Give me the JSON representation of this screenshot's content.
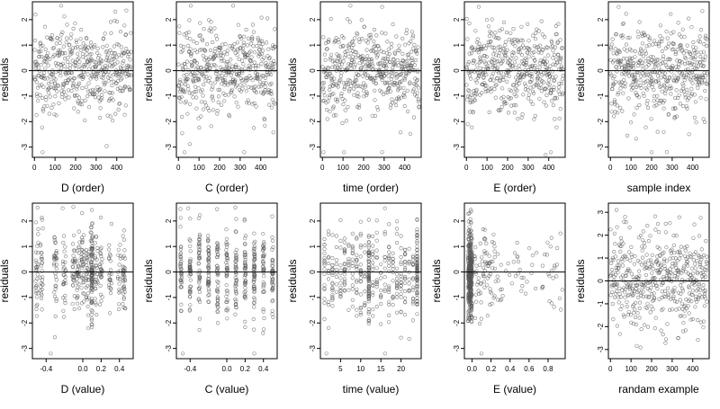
{
  "figure": {
    "background": "#ffffff",
    "point_color": "#555555",
    "line_color": "#000000"
  },
  "chart_data": [
    {
      "type": "scatter",
      "xlabel": "D (order)",
      "ylabel": "residuals",
      "xlim": [
        -10,
        480
      ],
      "ylim": [
        -3.4,
        2.7
      ],
      "xticks": [
        0,
        100,
        200,
        300,
        400
      ],
      "xticklabels": [
        "0",
        "100",
        "200",
        "300",
        "400"
      ],
      "yticks": [
        -3,
        -2,
        -1,
        0,
        1,
        2
      ],
      "yticklabels": [
        "-3",
        "-2",
        "-1",
        "0",
        "1",
        "2"
      ],
      "hline": 0,
      "n_points": 470,
      "x_range": [
        0,
        470
      ],
      "y_spread_sd": 0.85,
      "pattern": "uniform index",
      "outliers": [
        {
          "x": 40,
          "y": -3.2
        },
        {
          "x": 130,
          "y": 2.55
        },
        {
          "x": 5,
          "y": 2.2
        }
      ]
    },
    {
      "type": "scatter",
      "xlabel": "C (order)",
      "ylabel": "residuals",
      "xlim": [
        -10,
        480
      ],
      "ylim": [
        -3.4,
        2.7
      ],
      "xticks": [
        0,
        100,
        200,
        300,
        400
      ],
      "xticklabels": [
        "0",
        "100",
        "200",
        "300",
        "400"
      ],
      "yticks": [
        -3,
        -2,
        -1,
        0,
        1,
        2
      ],
      "yticklabels": [
        "-3",
        "-2",
        "-1",
        "0",
        "1",
        "2"
      ],
      "hline": 0,
      "n_points": 470,
      "x_range": [
        0,
        470
      ],
      "y_spread_sd": 0.85,
      "pattern": "uniform index",
      "outliers": [
        {
          "x": 30,
          "y": -3.2
        },
        {
          "x": 320,
          "y": -3.2
        },
        {
          "x": 60,
          "y": 2.55
        }
      ]
    },
    {
      "type": "scatter",
      "xlabel": "time (order)",
      "ylabel": "residuals",
      "xlim": [
        -10,
        480
      ],
      "ylim": [
        -3.4,
        2.7
      ],
      "xticks": [
        0,
        100,
        200,
        300,
        400
      ],
      "xticklabels": [
        "0",
        "100",
        "200",
        "300",
        "400"
      ],
      "yticks": [
        -3,
        -2,
        -1,
        0,
        1,
        2
      ],
      "yticklabels": [
        "-3",
        "-2",
        "-1",
        "0",
        "1",
        "2"
      ],
      "hline": 0,
      "n_points": 470,
      "x_range": [
        0,
        470
      ],
      "y_spread_sd": 0.85,
      "pattern": "uniform index",
      "outliers": [
        {
          "x": 5,
          "y": -3.2
        },
        {
          "x": 290,
          "y": -3.2
        },
        {
          "x": 290,
          "y": 2.5
        }
      ]
    },
    {
      "type": "scatter",
      "xlabel": "E (order)",
      "ylabel": "residuals",
      "xlim": [
        -10,
        480
      ],
      "ylim": [
        -3.4,
        2.7
      ],
      "xticks": [
        0,
        100,
        200,
        300,
        400
      ],
      "xticklabels": [
        "0",
        "100",
        "200",
        "300",
        "400"
      ],
      "yticks": [
        -3,
        -2,
        -1,
        0,
        1,
        2
      ],
      "yticklabels": [
        "-3",
        "-2",
        "-1",
        "0",
        "1",
        "2"
      ],
      "hline": 0,
      "n_points": 470,
      "x_range": [
        0,
        470
      ],
      "y_spread_sd": 0.85,
      "pattern": "uniform index",
      "outliers": [
        {
          "x": 410,
          "y": -3.2
        },
        {
          "x": 385,
          "y": -3.3
        },
        {
          "x": 60,
          "y": 2.5
        }
      ]
    },
    {
      "type": "scatter",
      "xlabel": "sample index",
      "ylabel": "residuals",
      "xlim": [
        -10,
        480
      ],
      "ylim": [
        -3.4,
        2.7
      ],
      "xticks": [
        0,
        100,
        200,
        300,
        400
      ],
      "xticklabels": [
        "0",
        "100",
        "200",
        "300",
        "400"
      ],
      "yticks": [
        -3,
        -2,
        -1,
        0,
        1,
        2
      ],
      "yticklabels": [
        "-3",
        "-2",
        "-1",
        "0",
        "1",
        "2"
      ],
      "hline": 0,
      "n_points": 470,
      "x_range": [
        0,
        470
      ],
      "y_spread_sd": 0.85,
      "pattern": "uniform index",
      "outliers": [
        {
          "x": 200,
          "y": -3.2
        },
        {
          "x": 40,
          "y": 2.5
        }
      ]
    },
    {
      "type": "scatter",
      "xlabel": "D (value)",
      "ylabel": "residuals",
      "xlim": [
        -0.55,
        0.55
      ],
      "ylim": [
        -3.4,
        2.7
      ],
      "xticks": [
        -0.4,
        0,
        0.2,
        0.4
      ],
      "xticklabels": [
        "-0.4",
        "0.0",
        "0.2",
        "0.4"
      ],
      "yticks": [
        -3,
        -2,
        -1,
        0,
        1,
        2
      ],
      "yticklabels": [
        "-3",
        "-2",
        "-1",
        "0",
        "1",
        "2"
      ],
      "hline": 0,
      "n_points": 470,
      "x_range": [
        -0.5,
        0.5
      ],
      "y_spread_sd": 0.85,
      "pattern": "discrete levels, dense at 0.1",
      "outliers": [
        {
          "x": -0.35,
          "y": -3.2
        },
        {
          "x": -0.22,
          "y": 2.5
        }
      ]
    },
    {
      "type": "scatter",
      "xlabel": "C (value)",
      "ylabel": "residuals",
      "xlim": [
        -0.55,
        0.55
      ],
      "ylim": [
        -3.4,
        2.7
      ],
      "xticks": [
        -0.4,
        0,
        0.2,
        0.4
      ],
      "xticklabels": [
        "-0.4",
        "0.0",
        "0.2",
        "0.4"
      ],
      "yticks": [
        -3,
        -2,
        -1,
        0,
        1,
        2
      ],
      "yticklabels": [
        "-3",
        "-2",
        "-1",
        "0",
        "1",
        "2"
      ],
      "hline": 0,
      "n_points": 470,
      "x_range": [
        -0.5,
        0.5
      ],
      "y_spread_sd": 0.85,
      "pattern": "discrete vertical columns",
      "outliers": [
        {
          "x": -0.48,
          "y": -3.2
        },
        {
          "x": 0.3,
          "y": -3.2
        },
        {
          "x": -0.42,
          "y": 2.5
        }
      ]
    },
    {
      "type": "scatter",
      "xlabel": "time (value)",
      "ylabel": "residuals",
      "xlim": [
        0,
        25
      ],
      "ylim": [
        -3.4,
        2.7
      ],
      "xticks": [
        5,
        10,
        15,
        20
      ],
      "xticklabels": [
        "5",
        "10",
        "15",
        "20"
      ],
      "yticks": [
        -3,
        -2,
        -1,
        0,
        1,
        2
      ],
      "yticklabels": [
        "-3",
        "-2",
        "-1",
        "0",
        "1",
        "2"
      ],
      "hline": 0,
      "n_points": 470,
      "x_range": [
        1,
        24
      ],
      "y_spread_sd": 0.85,
      "pattern": "discrete columns, dense at 12 and 24",
      "outliers": [
        {
          "x": 1.5,
          "y": -3.2
        },
        {
          "x": 16,
          "y": -3.2
        },
        {
          "x": 16,
          "y": 2.5
        }
      ]
    },
    {
      "type": "scatter",
      "xlabel": "E (value)",
      "ylabel": "residuals",
      "xlim": [
        -0.08,
        0.98
      ],
      "ylim": [
        -3.4,
        2.7
      ],
      "xticks": [
        0,
        0.2,
        0.4,
        0.6,
        0.8
      ],
      "xticklabels": [
        "0.0",
        "0.2",
        "0.4",
        "0.6",
        "0.8"
      ],
      "yticks": [
        -3,
        -2,
        -1,
        0,
        1,
        2
      ],
      "yticklabels": [
        "-3",
        "-2",
        "-1",
        "0",
        "1",
        "2"
      ],
      "hline": 0,
      "n_points": 470,
      "x_range": [
        -0.05,
        0.95
      ],
      "y_spread_sd": 0.85,
      "pattern": "heavily concentrated near 0",
      "outliers": [
        {
          "x": 0.1,
          "y": -3.2
        },
        {
          "x": 0.95,
          "y": -0.7
        }
      ]
    },
    {
      "type": "scatter",
      "xlabel": "randam example",
      "ylabel": "residuals",
      "xlim": [
        -10,
        480
      ],
      "ylim": [
        -3.4,
        3.4
      ],
      "xticks": [
        0,
        100,
        200,
        300,
        400
      ],
      "xticklabels": [
        "0",
        "100",
        "200",
        "300",
        "400"
      ],
      "yticks": [
        -3,
        -2,
        -1,
        0,
        1,
        2,
        3
      ],
      "yticklabels": [
        "-3",
        "-2",
        "-1",
        "0",
        "1",
        "2",
        "3"
      ],
      "hline": 0,
      "n_points": 470,
      "x_range": [
        0,
        470
      ],
      "y_spread_sd": 1.0,
      "pattern": "uniform index",
      "outliers": [
        {
          "x": 30,
          "y": 3.1
        },
        {
          "x": 330,
          "y": -2.5
        }
      ]
    }
  ]
}
